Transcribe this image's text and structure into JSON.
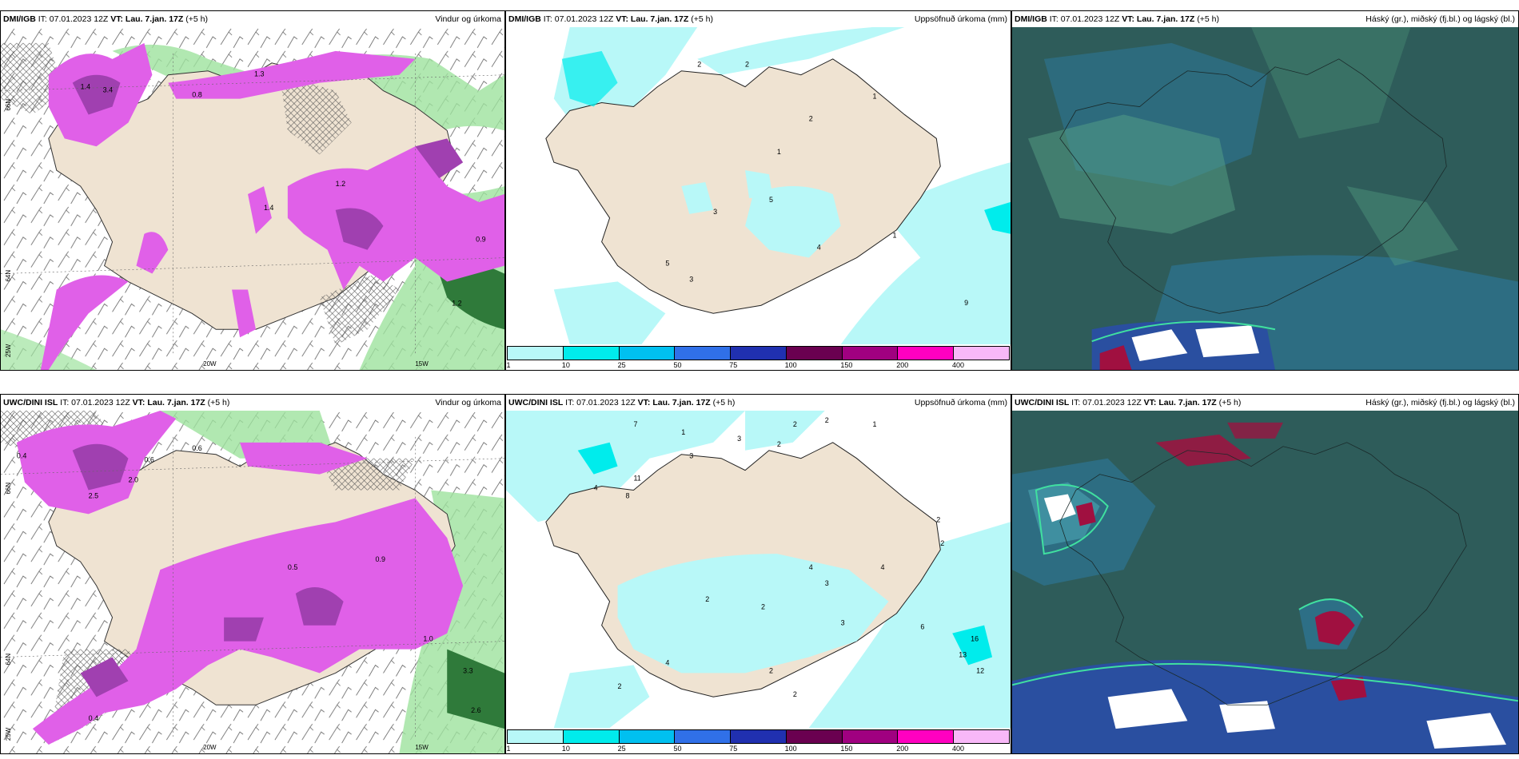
{
  "panels": [
    {
      "model": "DMI/IGB",
      "it": "IT: 07.01.2023 12Z",
      "vt": "VT: Lau. 7.jan. 17Z",
      "lead": "(+5 h)",
      "right": "Vindur og úrkoma"
    },
    {
      "model": "DMI/IGB",
      "it": "IT: 07.01.2023 12Z",
      "vt": "VT: Lau. 7.jan. 17Z",
      "lead": "(+5 h)",
      "right": "Uppsöfnuð úrkoma (mm)"
    },
    {
      "model": "DMI/IGB",
      "it": "IT: 07.01.2023 12Z",
      "vt": "VT: Lau. 7.jan. 17Z",
      "lead": "(+5 h)",
      "right": "Háský (gr.), miðský (fj.bl.) og lágský (bl.)"
    },
    {
      "model": "UWC/DINI ISL",
      "it": "IT: 07.01.2023 12Z",
      "vt": "VT: Lau. 7.jan. 17Z",
      "lead": "(+5 h)",
      "right": "Vindur og úrkoma"
    },
    {
      "model": "UWC/DINI ISL",
      "it": "IT: 07.01.2023 12Z",
      "vt": "VT: Lau. 7.jan. 17Z",
      "lead": "(+5 h)",
      "right": "Uppsöfnuð úrkoma (mm)"
    },
    {
      "model": "UWC/DINI ISL",
      "it": "IT: 07.01.2023 12Z",
      "vt": "VT: Lau. 7.jan. 17Z",
      "lead": "(+5 h)",
      "right": "Háský (gr.), miðský (fj.bl.) og lágský (bl.)"
    }
  ],
  "axis_labels": {
    "lat66": "66N",
    "lat64": "64N",
    "lon25": "25W",
    "lon20": "20W",
    "lon15": "15W"
  },
  "colorbar": {
    "colors": [
      "#b8f8f8",
      "#00ecec",
      "#00c0f0",
      "#3070e8",
      "#2030b0",
      "#6a0050",
      "#a00080",
      "#ff00c0",
      "#f8b8f8"
    ],
    "ticks": [
      "1",
      "10",
      "25",
      "50",
      "75",
      "100",
      "150",
      "200",
      "400"
    ]
  },
  "top_precip_labels": [
    "2",
    "2",
    "1",
    "2",
    "1",
    "3",
    "5",
    "4",
    "5",
    "3",
    "9",
    "1"
  ],
  "bottom_precip_labels": [
    "7",
    "1",
    "3",
    "2",
    "2",
    "2",
    "3",
    "11",
    "8",
    "4",
    "1",
    "2",
    "2",
    "4",
    "3",
    "2",
    "2",
    "4",
    "3",
    "16",
    "13",
    "12",
    "6",
    "2",
    "2",
    "2",
    "4"
  ],
  "top_wind_labels": [
    "3.4",
    "1.4",
    "0.8",
    "1.3",
    "1.2",
    "1.4",
    "0.9",
    "1.2"
  ],
  "bottom_wind_labels": [
    "0.4",
    "0.6",
    "2.5",
    "2.0",
    "0.5",
    "0.9",
    "1.0",
    "3.3",
    "2.6",
    "0.6",
    "0.4"
  ],
  "colors": {
    "land": "#efe3d2",
    "pink": "#e060e8",
    "purple": "#a040b0",
    "green": "#9ee29e",
    "darkgreen": "#2f7a3a",
    "cyan": "#b8f8f8",
    "cloud_bg": "#2e5c5a"
  }
}
